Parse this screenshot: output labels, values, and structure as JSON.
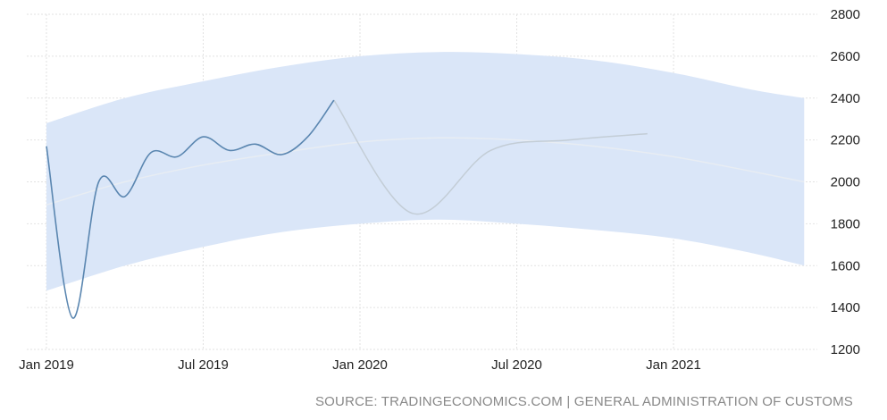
{
  "source_text": "SOURCE: TRADINGECONOMICS.COM | GENERAL ADMINISTRATION OF CUSTOMS",
  "chart_data": {
    "type": "line",
    "title": "",
    "xlabel": "",
    "ylabel": "",
    "ylim": [
      1200,
      2800
    ],
    "yticks": [
      1200,
      1400,
      1600,
      1800,
      2000,
      2200,
      2400,
      2600,
      2800
    ],
    "xticks": [
      "Jan 2019",
      "Jul 2019",
      "Jan 2020",
      "Jul 2020",
      "Jan 2021"
    ],
    "y_axis_position": "right",
    "grid": true,
    "colors": {
      "actual": "#5a86b0",
      "forecast": "#c3cdd6",
      "trend": "#e8edf3",
      "band": "#dae6f8",
      "grid": "#e2e2e2",
      "source_text": "#888888"
    },
    "series": [
      {
        "key": "actual",
        "x": [
          "2019-01",
          "2019-02",
          "2019-03",
          "2019-04",
          "2019-05",
          "2019-06",
          "2019-07",
          "2019-08",
          "2019-09",
          "2019-10",
          "2019-11",
          "2019-12"
        ],
        "values": [
          2170,
          1350,
          2000,
          1930,
          2140,
          2120,
          2215,
          2150,
          2180,
          2130,
          2215,
          2390
        ]
      },
      {
        "key": "forecast",
        "x": [
          "2019-12",
          "2020-03",
          "2020-06",
          "2020-09",
          "2020-12"
        ],
        "values": [
          2390,
          1850,
          2150,
          2200,
          2230
        ]
      },
      {
        "key": "trend",
        "x": [
          "2019-01",
          "2019-04",
          "2019-07",
          "2019-10",
          "2020-01",
          "2020-04",
          "2020-07",
          "2020-10",
          "2021-01",
          "2021-04",
          "2021-06"
        ],
        "values": [
          1890,
          2000,
          2080,
          2140,
          2190,
          2210,
          2200,
          2170,
          2120,
          2050,
          2000
        ]
      },
      {
        "key": "band_upper",
        "x": [
          "2019-01",
          "2019-04",
          "2019-07",
          "2019-10",
          "2020-01",
          "2020-04",
          "2020-07",
          "2020-10",
          "2021-01",
          "2021-04",
          "2021-06"
        ],
        "values": [
          2280,
          2400,
          2480,
          2550,
          2600,
          2620,
          2610,
          2580,
          2520,
          2440,
          2400
        ]
      },
      {
        "key": "band_lower",
        "x": [
          "2019-01",
          "2019-04",
          "2019-07",
          "2019-10",
          "2020-01",
          "2020-04",
          "2020-07",
          "2020-10",
          "2021-01",
          "2021-04",
          "2021-06"
        ],
        "values": [
          1480,
          1600,
          1690,
          1760,
          1800,
          1820,
          1800,
          1770,
          1730,
          1660,
          1600
        ]
      }
    ]
  }
}
